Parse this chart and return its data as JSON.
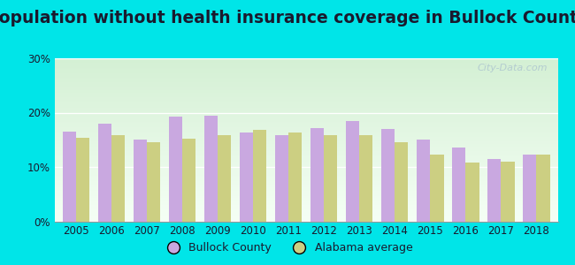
{
  "title": "Population without health insurance coverage in Bullock County",
  "years": [
    2005,
    2006,
    2007,
    2008,
    2009,
    2010,
    2011,
    2012,
    2013,
    2014,
    2015,
    2016,
    2017,
    2018
  ],
  "bullock": [
    16.5,
    18.0,
    15.0,
    19.2,
    19.4,
    16.3,
    15.8,
    17.2,
    18.5,
    17.0,
    15.0,
    13.5,
    11.5,
    12.2
  ],
  "alabama": [
    15.3,
    15.8,
    14.6,
    15.2,
    15.8,
    16.8,
    16.4,
    15.8,
    15.8,
    14.6,
    12.2,
    10.8,
    11.0,
    12.2
  ],
  "bullock_color": "#c9a8e0",
  "alabama_color": "#cccf82",
  "background_outer": "#00e5e8",
  "ylim": [
    0,
    30
  ],
  "yticks": [
    0,
    10,
    20,
    30
  ],
  "ytick_labels": [
    "0%",
    "10%",
    "20%",
    "30%"
  ],
  "legend_bullock": "Bullock County",
  "legend_alabama": "Alabama average",
  "bar_width": 0.38,
  "title_fontsize": 13.5,
  "watermark": "City-Data.com",
  "plot_bg_top": "#d4f0d4",
  "plot_bg_bottom": "#f5fff5",
  "grid_color": "#ffffff",
  "text_color": "#1a1a2e"
}
